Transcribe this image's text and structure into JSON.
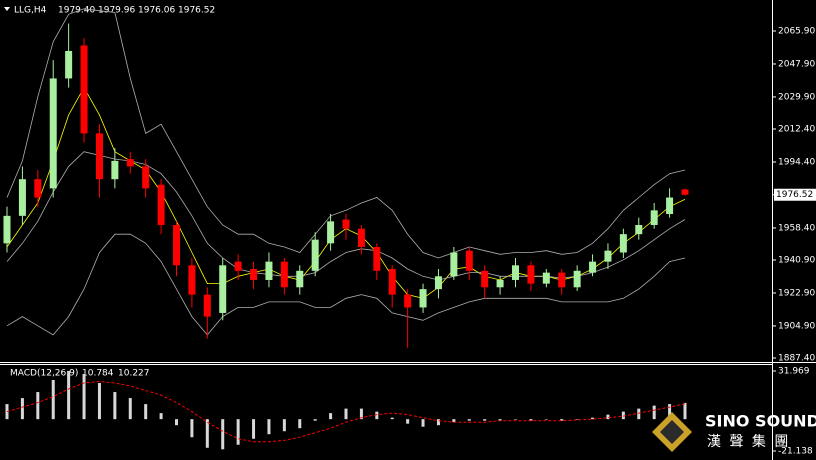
{
  "chart_data": [
    {
      "type": "candlestick",
      "title": "LLG,H4",
      "header_values": [
        "1979.40",
        "1979.96",
        "1976.06",
        "1976.52"
      ],
      "open": [
        1950,
        1965,
        1985,
        1980,
        2040,
        2058,
        2010,
        1985,
        1996,
        1992,
        1982,
        1960,
        1938,
        1922,
        1912,
        1940,
        1936,
        1930,
        1940,
        1926,
        1935,
        1950,
        1963,
        1958,
        1948,
        1936,
        1922,
        1915,
        1925,
        1932,
        1946,
        1935,
        1926,
        1930,
        1938,
        1928,
        1934,
        1926,
        1934,
        1940,
        1945,
        1955,
        1960,
        1966,
        1979.4
      ],
      "high": [
        1970,
        1992,
        1990,
        2050,
        2070,
        2062,
        2015,
        2002,
        2000,
        1996,
        1985,
        1962,
        1942,
        1926,
        1942,
        1944,
        1940,
        1945,
        1942,
        1938,
        1956,
        1966,
        1966,
        1960,
        1950,
        1938,
        1925,
        1928,
        1936,
        1948,
        1948,
        1938,
        1932,
        1942,
        1940,
        1936,
        1936,
        1938,
        1944,
        1950,
        1958,
        1964,
        1972,
        1980,
        1979.96
      ],
      "low": [
        1945,
        1960,
        1970,
        1975,
        2035,
        2005,
        1975,
        1980,
        1988,
        1975,
        1955,
        1932,
        1915,
        1898,
        1908,
        1930,
        1925,
        1926,
        1922,
        1922,
        1932,
        1946,
        1952,
        1944,
        1930,
        1915,
        1893,
        1912,
        1920,
        1930,
        1930,
        1920,
        1922,
        1926,
        1924,
        1926,
        1922,
        1924,
        1932,
        1936,
        1942,
        1952,
        1958,
        1964,
        1976.06
      ],
      "close": [
        1965,
        1985,
        1975,
        2040,
        2055,
        2010,
        1985,
        1995,
        1992,
        1980,
        1960,
        1938,
        1922,
        1910,
        1938,
        1935,
        1930,
        1940,
        1926,
        1935,
        1952,
        1962,
        1958,
        1948,
        1935,
        1922,
        1915,
        1925,
        1932,
        1945,
        1935,
        1926,
        1930,
        1938,
        1928,
        1934,
        1926,
        1935,
        1940,
        1946,
        1955,
        1960,
        1968,
        1975,
        1976.52
      ],
      "up_color": "#a8f0a0",
      "down_color": "#ff0000",
      "lines": [
        {
          "color": "#ffff00",
          "values": [
            1948,
            1960,
            1972,
            1995,
            2020,
            2035,
            2020,
            2000,
            1995,
            1990,
            1978,
            1962,
            1945,
            1928,
            1928,
            1932,
            1934,
            1936,
            1932,
            1930,
            1940,
            1952,
            1958,
            1954,
            1945,
            1932,
            1922,
            1920,
            1926,
            1936,
            1937,
            1932,
            1930,
            1934,
            1932,
            1932,
            1930,
            1932,
            1936,
            1942,
            1950,
            1956,
            1963,
            1970,
            1974
          ]
        },
        {
          "color": "#b0b0b0",
          "values": [
            1940,
            1950,
            1962,
            1978,
            1992,
            2000,
            1998,
            1996,
            1995,
            1993,
            1988,
            1978,
            1965,
            1950,
            1942,
            1936,
            1934,
            1933,
            1932,
            1932,
            1934,
            1940,
            1945,
            1947,
            1946,
            1942,
            1936,
            1932,
            1930,
            1932,
            1934,
            1934,
            1932,
            1932,
            1932,
            1932,
            1931,
            1932,
            1934,
            1937,
            1941,
            1946,
            1952,
            1958,
            1963
          ]
        },
        {
          "color": "#b0b0b0",
          "values": [
            1975,
            1995,
            2030,
            2060,
            2075,
            2078,
            2077,
            2076,
            2040,
            2010,
            2015,
            2000,
            1985,
            1970,
            1960,
            1955,
            1955,
            1950,
            1948,
            1945,
            1955,
            1965,
            1968,
            1972,
            1975,
            1968,
            1955,
            1945,
            1942,
            1945,
            1948,
            1946,
            1944,
            1945,
            1945,
            1946,
            1944,
            1945,
            1950,
            1958,
            1968,
            1975,
            1982,
            1988,
            1990
          ]
        },
        {
          "color": "#b0b0b0",
          "values": [
            1905,
            1910,
            1905,
            1900,
            1910,
            1925,
            1945,
            1955,
            1955,
            1950,
            1940,
            1925,
            1910,
            1900,
            1910,
            1915,
            1915,
            1918,
            1918,
            1918,
            1915,
            1915,
            1920,
            1922,
            1920,
            1912,
            1910,
            1908,
            1912,
            1915,
            1918,
            1920,
            1920,
            1920,
            1920,
            1920,
            1918,
            1918,
            1918,
            1918,
            1920,
            1925,
            1932,
            1940,
            1942
          ]
        }
      ],
      "ylim": [
        1885.22,
        2082.82
      ],
      "yticks": [
        {
          "value": 2065.9,
          "label": "2065.90"
        },
        {
          "value": 2047.9,
          "label": "2047.90"
        },
        {
          "value": 2029.9,
          "label": "2029.90"
        },
        {
          "value": 2012.4,
          "label": "2012.40"
        },
        {
          "value": 1994.4,
          "label": "1994.40"
        },
        {
          "value": 1958.4,
          "label": "1958.40"
        },
        {
          "value": 1940.9,
          "label": "1940.90"
        },
        {
          "value": 1922.9,
          "label": "1922.90"
        },
        {
          "value": 1904.9,
          "label": "1904.90"
        },
        {
          "value": 1887.4,
          "label": "1887.40"
        }
      ],
      "current_price": {
        "value": 1976.52,
        "label": "1976.52"
      }
    },
    {
      "type": "macd",
      "title": "MACD(12,26,9)",
      "title_values": [
        10.784,
        10.227
      ],
      "histogram": [
        10,
        14,
        18,
        26,
        32,
        30,
        24,
        18,
        14,
        10,
        4,
        -4,
        -12,
        -19,
        -20,
        -17,
        -13,
        -10,
        -8,
        -6,
        -1,
        4,
        7,
        7,
        5,
        1,
        -3,
        -5,
        -4,
        -2,
        -1,
        -1,
        -1,
        0,
        -1,
        0,
        -1,
        0,
        1,
        3,
        5,
        7,
        9,
        10,
        10.784
      ],
      "signal": [
        5,
        8,
        11,
        15,
        20,
        24,
        25,
        24,
        22,
        19,
        16,
        11,
        5,
        -2,
        -8,
        -13,
        -15,
        -15,
        -14,
        -12,
        -9,
        -6,
        -2,
        1,
        3,
        4,
        3,
        1,
        -1,
        -2,
        -2,
        -2,
        -1,
        -1,
        -1,
        -1,
        -1,
        -0.5,
        0,
        1,
        2,
        4,
        6,
        8,
        10.227
      ],
      "histogram_color": "#d8d8d8",
      "signal_color": "#ff0000",
      "ylim": [
        -27.11,
        37.28
      ],
      "yticks": [
        31.969,
        -21.138
      ]
    }
  ],
  "logo": {
    "brand": "SINO SOUND",
    "subtitle": "漢 聲 集 團"
  }
}
